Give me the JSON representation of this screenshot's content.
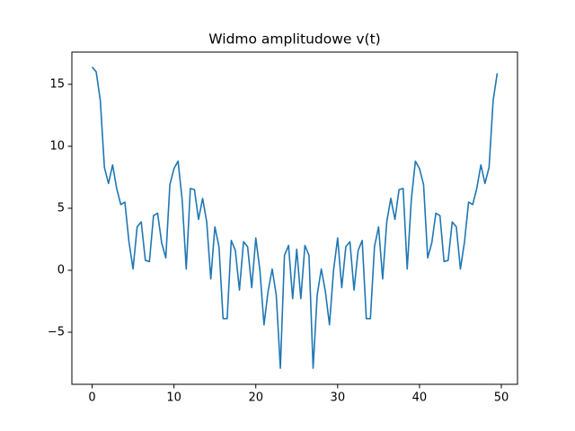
{
  "chart_data": {
    "type": "line",
    "title": "Widmo amplitudowe v(t)",
    "x": [
      0,
      0.5,
      1,
      1.5,
      2,
      2.5,
      3,
      3.5,
      4,
      4.5,
      5,
      5.5,
      6,
      6.5,
      7,
      7.5,
      8,
      8.5,
      9,
      9.5,
      10,
      10.5,
      11,
      11.5,
      12,
      12.5,
      13,
      13.5,
      14,
      14.5,
      15,
      15.5,
      16,
      16.5,
      17,
      17.5,
      18,
      18.5,
      19,
      19.5,
      20,
      20.5,
      21,
      21.5,
      22,
      22.5,
      23,
      23.5,
      24,
      24.5,
      25,
      25.5,
      26,
      26.5,
      27,
      27.5,
      28,
      28.5,
      29,
      29.5,
      30,
      30.5,
      31,
      31.5,
      32,
      32.5,
      33,
      33.5,
      34,
      34.5,
      35,
      35.5,
      36,
      36.5,
      37,
      37.5,
      38,
      38.5,
      39,
      39.5,
      40,
      40.5,
      41,
      41.5,
      42,
      42.5,
      43,
      43.5,
      44,
      44.5,
      45,
      45.5,
      46,
      46.5,
      47,
      47.5,
      48,
      48.5,
      49,
      49.5
    ],
    "values": [
      16.4,
      16.0,
      13.7,
      8.3,
      7.0,
      8.5,
      6.6,
      5.3,
      5.5,
      2.3,
      0.1,
      3.5,
      3.9,
      0.8,
      0.7,
      4.4,
      4.6,
      2.2,
      1.0,
      6.9,
      8.2,
      8.8,
      5.7,
      0.1,
      6.6,
      6.5,
      4.1,
      5.8,
      3.9,
      -0.7,
      3.5,
      1.9,
      -3.9,
      -3.9,
      2.4,
      1.6,
      -1.6,
      2.3,
      1.9,
      -1.4,
      2.6,
      0.0,
      -4.4,
      -1.7,
      0.1,
      -2.0,
      -7.9,
      1.2,
      2.0,
      -2.3,
      1.7,
      -2.3,
      2.0,
      1.2,
      -7.9,
      -2.0,
      0.1,
      -1.7,
      -4.4,
      0.0,
      2.6,
      -1.4,
      1.9,
      2.3,
      -1.6,
      1.6,
      2.4,
      -3.9,
      -3.9,
      1.9,
      3.5,
      -0.7,
      3.9,
      5.8,
      4.1,
      6.5,
      6.6,
      0.1,
      5.7,
      8.8,
      8.2,
      6.9,
      1.0,
      2.2,
      4.6,
      4.4,
      0.7,
      0.8,
      3.9,
      3.5,
      0.1,
      2.3,
      5.5,
      5.3,
      6.6,
      8.5,
      7.0,
      8.3,
      13.7,
      15.9
    ],
    "color": "#1f77b4",
    "xlim": [
      -2.475,
      51.975
    ],
    "xticks": [
      0,
      10,
      20,
      30,
      40,
      50
    ],
    "ylim": [
      -9.2,
      17.6
    ],
    "yticks": [
      {
        "value": -5,
        "label": "−5"
      },
      0,
      5,
      10,
      15
    ]
  }
}
